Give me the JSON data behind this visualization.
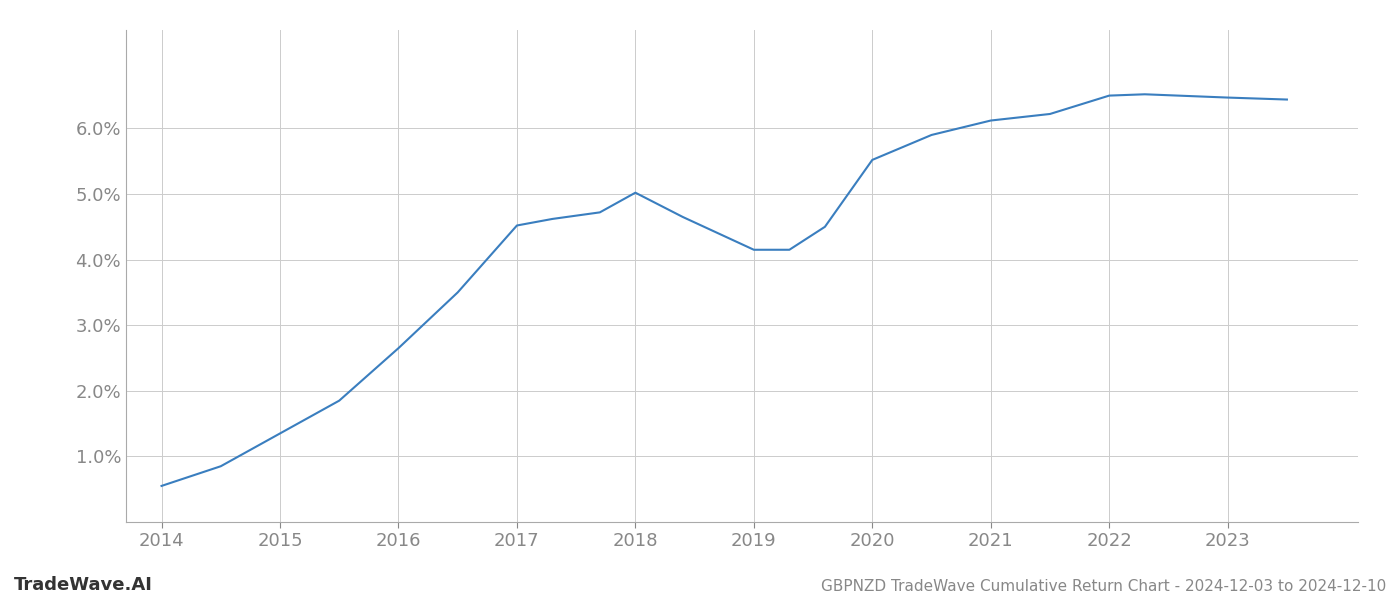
{
  "x": [
    2014.0,
    2014.5,
    2015.0,
    2015.5,
    2016.0,
    2016.5,
    2017.0,
    2017.3,
    2017.7,
    2018.0,
    2018.4,
    2019.0,
    2019.3,
    2019.6,
    2020.0,
    2020.5,
    2021.0,
    2021.5,
    2022.0,
    2022.3,
    2023.0,
    2023.5
  ],
  "y": [
    0.55,
    0.85,
    1.35,
    1.85,
    2.65,
    3.5,
    4.52,
    4.62,
    4.72,
    5.02,
    4.65,
    4.15,
    4.15,
    4.5,
    5.52,
    5.9,
    6.12,
    6.22,
    6.5,
    6.52,
    6.47,
    6.44
  ],
  "line_color": "#3a7ebf",
  "line_width": 1.5,
  "background_color": "#ffffff",
  "grid_color": "#cccccc",
  "title": "GBPNZD TradeWave Cumulative Return Chart - 2024-12-03 to 2024-12-10",
  "watermark": "TradeWave.AI",
  "xlim": [
    2013.7,
    2024.1
  ],
  "ylim": [
    0.0,
    7.5
  ],
  "xticks": [
    2014,
    2015,
    2016,
    2017,
    2018,
    2019,
    2020,
    2021,
    2022,
    2023
  ],
  "yticks": [
    1.0,
    2.0,
    3.0,
    4.0,
    5.0,
    6.0
  ],
  "tick_color": "#888888",
  "title_fontsize": 11,
  "tick_fontsize": 13,
  "watermark_fontsize": 13,
  "spine_color": "#aaaaaa"
}
